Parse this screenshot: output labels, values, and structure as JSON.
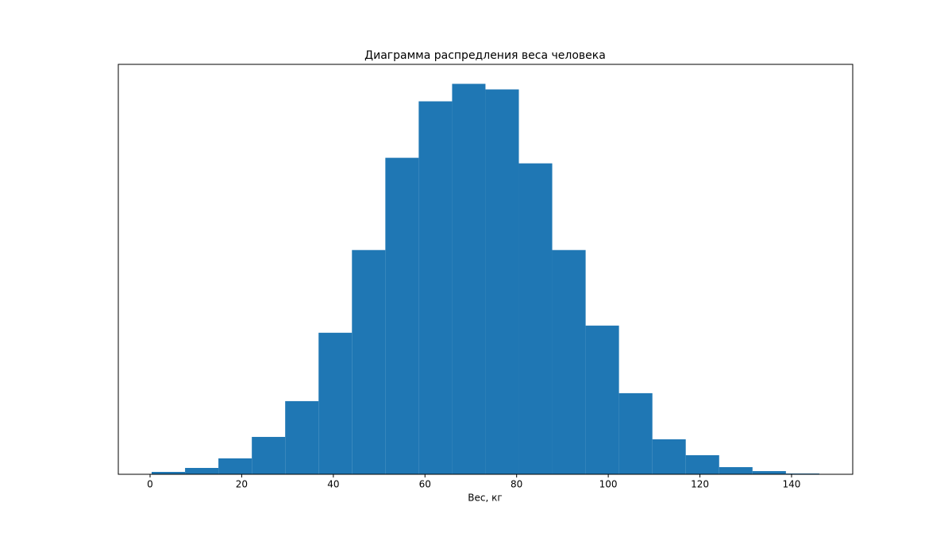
{
  "chart_data": {
    "type": "histogram",
    "title": "Диаграмма распредления веса человека",
    "x_label": "Вес, кг",
    "bins": [
      0.35,
      7.64,
      14.92,
      22.21,
      29.49,
      36.78,
      44.06,
      51.35,
      58.63,
      65.92,
      73.2,
      80.49,
      87.77,
      95.06,
      102.34,
      109.63,
      116.91,
      124.2,
      131.48,
      138.77,
      146.05
    ],
    "values": [
      3,
      8,
      20,
      47,
      92,
      178,
      282,
      398,
      469,
      491,
      484,
      391,
      282,
      187,
      102,
      44,
      24,
      9,
      4,
      1
    ],
    "color": "#1f77b4",
    "xlim": [
      -6.93,
      153.35
    ],
    "xticks": [
      0,
      20,
      40,
      60,
      80,
      100,
      120,
      140
    ],
    "ylim": [
      0,
      515.5
    ]
  }
}
